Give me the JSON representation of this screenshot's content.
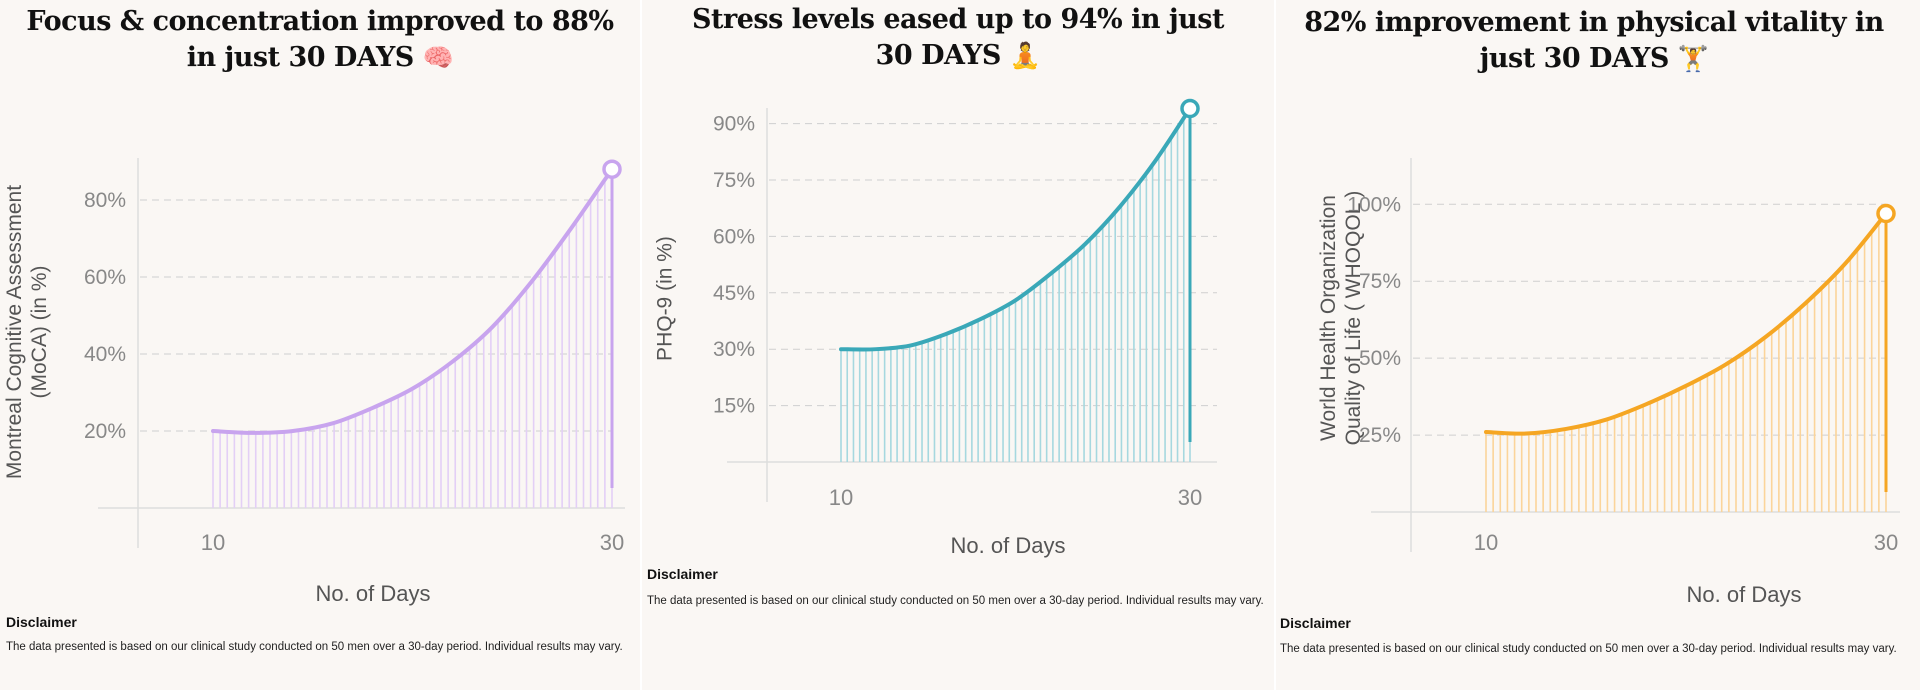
{
  "panels": [
    {
      "title": "Focus & concentration improved to 88% in just 30 DAYS",
      "emoji": "🧠",
      "ylabel_lines": [
        "Montreal Cognitive Assessment",
        "(MoCA) (in %)"
      ],
      "xlabel": "No. of Days",
      "disclaimer_title": "Disclaimer",
      "disclaimer_text": "The data presented is based on our clinical study conducted on 50 men over a 30-day period. Individual results may vary.",
      "color": "#c8a4ee",
      "fill_color": "#e3cff6"
    },
    {
      "title": "Stress levels eased up to 94% in just 30 DAYS",
      "emoji": "🧘",
      "ylabel_lines": [
        "PHQ-9 (in %)"
      ],
      "xlabel": "No. of Days",
      "disclaimer_title": "Disclaimer",
      "disclaimer_text": "The data presented is based on our clinical study conducted on 50 men over a 30-day period. Individual results may vary.",
      "color": "#3aa8b8",
      "fill_color": "#a6d8df"
    },
    {
      "title": "82% improvement in physical vitality in just 30 DAYS",
      "emoji": "🏋",
      "ylabel_lines": [
        "World Health  Organization",
        "Quality of Life  ( WHOQOL )"
      ],
      "xlabel": "No. of Days",
      "disclaimer_title": "Disclaimer",
      "disclaimer_text": "The data presented is based on our clinical study conducted on 50 men over a 30-day period. Individual results may vary.",
      "color": "#f5a623",
      "fill_color": "#fbd49a"
    }
  ],
  "chart_data": [
    {
      "type": "area",
      "title": "Focus & concentration improved to 88% in just 30 DAYS",
      "xlabel": "No. of Days",
      "ylabel": "Montreal Cognitive Assessment (MoCA) (in %)",
      "x_ticks": [
        10,
        30
      ],
      "y_ticks": [
        20,
        40,
        60,
        80
      ],
      "y_tick_labels": [
        "20%",
        "40%",
        "60%",
        "80%"
      ],
      "xlim": [
        10,
        30
      ],
      "ylim": [
        0,
        100
      ],
      "grid": "horizontal dashed",
      "series": [
        {
          "x": [
            10,
            12,
            14,
            16,
            18,
            20,
            22,
            24,
            26,
            28,
            30
          ],
          "values": [
            20,
            19.5,
            20,
            22,
            26,
            31,
            38,
            47,
            59,
            73,
            88
          ]
        }
      ]
    },
    {
      "type": "area",
      "title": "Stress levels eased up to 94% in just 30 DAYS",
      "xlabel": "No. of Days",
      "ylabel": "PHQ-9 (in %)",
      "x_ticks": [
        10,
        30
      ],
      "y_ticks": [
        15,
        30,
        45,
        60,
        75,
        90
      ],
      "y_tick_labels": [
        "15%",
        "30%",
        "45%",
        "60%",
        "75%",
        "90%"
      ],
      "xlim": [
        10,
        30
      ],
      "ylim": [
        0,
        96
      ],
      "grid": "horizontal dashed",
      "series": [
        {
          "x": [
            10,
            12,
            14,
            16,
            18,
            20,
            22,
            24,
            26,
            28,
            30
          ],
          "values": [
            30,
            30,
            31,
            34,
            38,
            43,
            50,
            58,
            68,
            80,
            94
          ]
        }
      ]
    },
    {
      "type": "area",
      "title": "82% improvement in physical vitality in just 30 DAYS",
      "xlabel": "No. of Days",
      "ylabel": "World Health Organization Quality of Life ( WHOQOL )",
      "x_ticks": [
        10,
        30
      ],
      "y_ticks": [
        25,
        50,
        75,
        100
      ],
      "y_tick_labels": [
        "25%",
        "50%",
        "75%",
        "100%"
      ],
      "xlim": [
        10,
        30
      ],
      "ylim": [
        0,
        130
      ],
      "grid": "horizontal dashed",
      "series": [
        {
          "x": [
            10,
            12,
            14,
            16,
            18,
            20,
            22,
            24,
            26,
            28,
            30
          ],
          "values": [
            26,
            25.5,
            27,
            30,
            35,
            41,
            48,
            57,
            68,
            81,
            97
          ]
        }
      ]
    }
  ]
}
